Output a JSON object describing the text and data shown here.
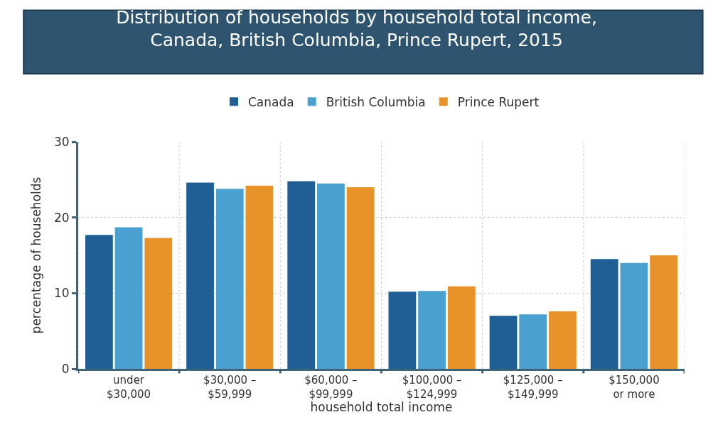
{
  "chart_data": {
    "type": "bar",
    "title": "Distribution of households by household total income,\nCanada, British Columbia, Prince Rupert, 2015",
    "categories": [
      "under\n$30,000",
      "$30,000 –\n$59,999",
      "$60,000 –\n$99,999",
      "$100,000 –\n$124,999",
      "$125,000 –\n$149,999",
      "$150,000\nor more"
    ],
    "series": [
      {
        "name": "Canada",
        "color": "#1f5f96",
        "values": [
          17.7,
          24.6,
          24.8,
          10.2,
          7.0,
          14.5
        ]
      },
      {
        "name": "British Columbia",
        "color": "#4aa0d0",
        "values": [
          18.7,
          23.8,
          24.5,
          10.3,
          7.2,
          14.0
        ]
      },
      {
        "name": "Prince Rupert",
        "color": "#e8922a",
        "values": [
          17.3,
          24.2,
          24.0,
          10.9,
          7.6,
          15.0
        ]
      }
    ],
    "xlabel": "household total income",
    "ylabel": "percentage of households",
    "ylim": [
      0,
      30
    ],
    "yticks": [
      0,
      10,
      20,
      30
    ],
    "grid": true,
    "legend": "top"
  }
}
